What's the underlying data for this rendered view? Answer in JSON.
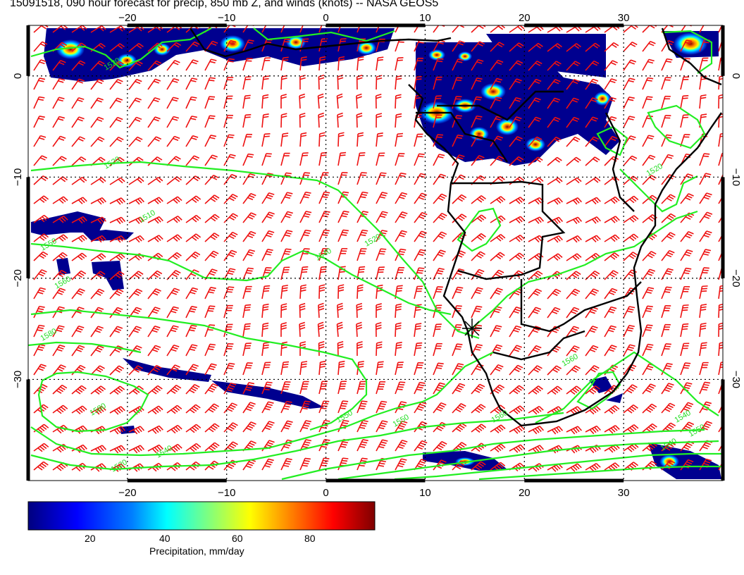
{
  "title": "15091518, 090 hour forecast for precip, 850 mb Z, and winds (knots) -- NASA GEOS5",
  "map": {
    "lon_range": [
      -30,
      40
    ],
    "lat_range": [
      -40,
      5
    ],
    "lon_ticks": [
      -20,
      -10,
      0,
      10,
      20,
      30
    ],
    "lat_ticks": [
      0,
      -10,
      -20,
      -30
    ],
    "lon_tick_labels": [
      "−20",
      "−10",
      "0",
      "10",
      "20",
      "30"
    ],
    "lat_tick_labels": [
      "0",
      "−10",
      "−20",
      "−30"
    ],
    "grid": "dotted",
    "contour_color": "#22ee22",
    "wind_barb_color": "#ee1111",
    "contour_labels": [
      "1520",
      "1520",
      "1510",
      "1520",
      "1550",
      "1540",
      "1560",
      "1580",
      "1580",
      "1560",
      "1540",
      "1550",
      "1550",
      "1540",
      "1520",
      "1550",
      "1560",
      "1540",
      "1520"
    ]
  },
  "colorbar": {
    "label": "Precipitation, mm/day",
    "ticks": [
      "20",
      "40",
      "60",
      "80"
    ],
    "colors": [
      "#00007f",
      "#0000ff",
      "#007fff",
      "#00ffff",
      "#7fff7f",
      "#ffff00",
      "#ff7f00",
      "#ff0000",
      "#7f0000"
    ]
  }
}
